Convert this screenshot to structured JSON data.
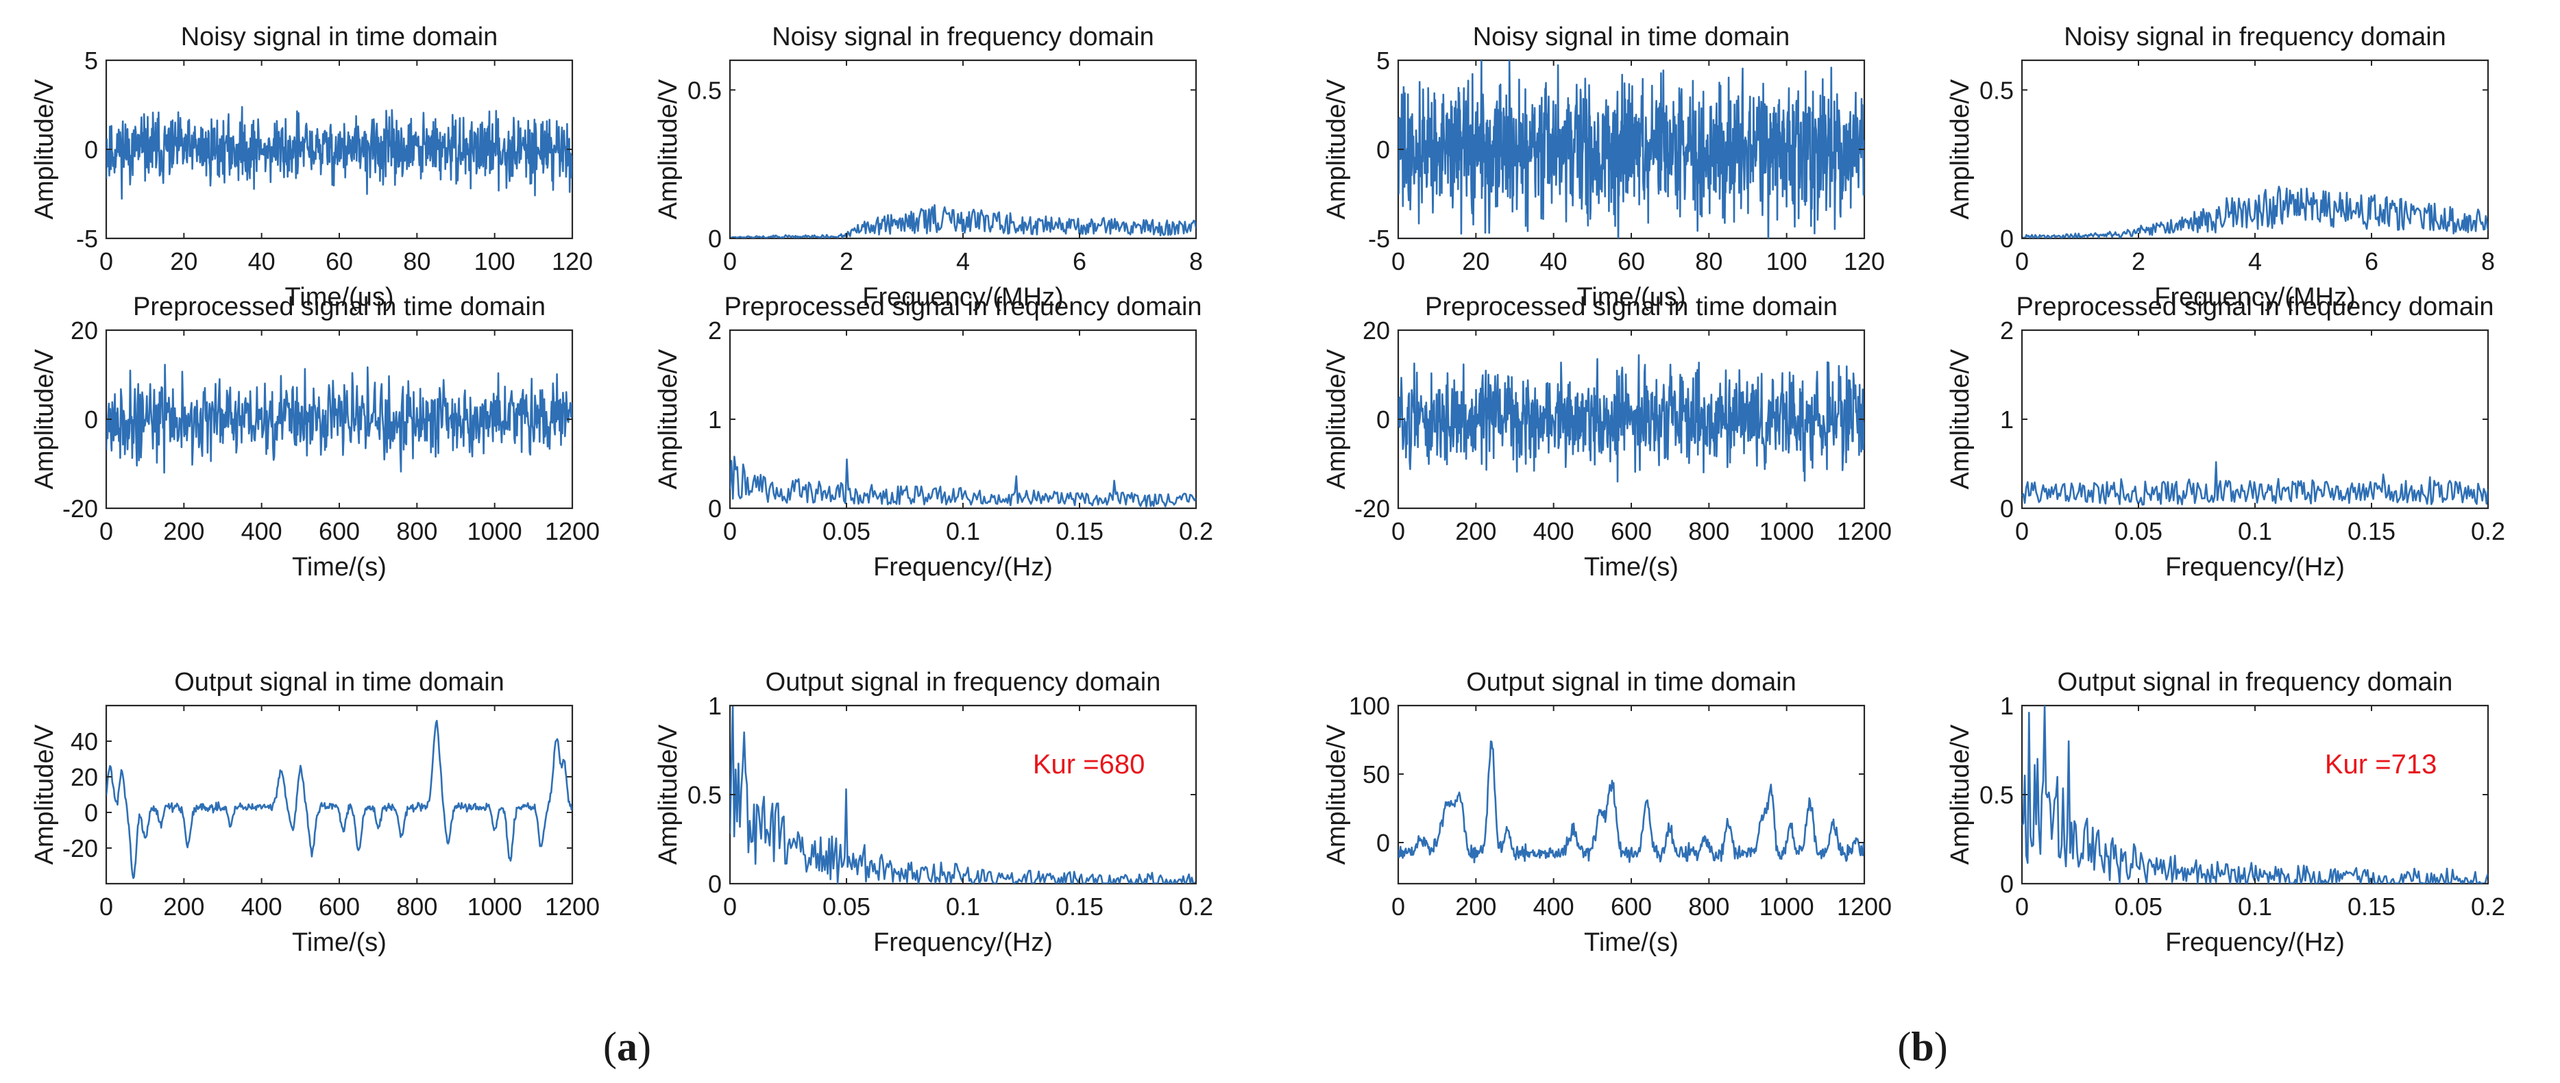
{
  "colors": {
    "signal": "#2e6fb5",
    "annotation": "#e8151b",
    "axes": "#262626"
  },
  "figure_labels": [
    {
      "open": "(",
      "letter": "a",
      "close": ")"
    },
    {
      "open": "(",
      "letter": "b",
      "close": ")"
    }
  ],
  "chart_data": [
    {
      "id": "a-noisy-time",
      "type": "line",
      "title": "Noisy signal in time domain",
      "xlabel": "Time/(us)",
      "ylabel": "Amplitude/V",
      "xlim": [
        0,
        120
      ],
      "ylim": [
        -5,
        5
      ],
      "xticks": [
        0,
        20,
        40,
        60,
        80,
        100,
        120
      ],
      "yticks": [
        -5,
        0,
        5
      ],
      "signal": {
        "kind": "noise",
        "n": 900,
        "amplitude": 1.3,
        "baseline": 0,
        "seed": 11,
        "x_start": 0,
        "x_end": 120
      }
    },
    {
      "id": "a-noisy-freq",
      "type": "line",
      "title": "Noisy signal in frequency domain",
      "xlabel": "Frequency/(MHz)",
      "ylabel": "Amplitude/V",
      "xlim": [
        0,
        8
      ],
      "ylim": [
        0,
        0.6
      ],
      "xticks": [
        0,
        2,
        4,
        6,
        8
      ],
      "yticks": [
        0,
        0.5
      ],
      "signal": {
        "kind": "spectrum",
        "n": 420,
        "seed": 12,
        "x_start": 0,
        "x_end": 8,
        "envelope": [
          [
            0,
            0.004
          ],
          [
            1.9,
            0.008
          ],
          [
            2.3,
            0.04
          ],
          [
            3.5,
            0.075
          ],
          [
            5,
            0.055
          ],
          [
            6.5,
            0.045
          ],
          [
            8,
            0.04
          ]
        ],
        "jitter": 0.022
      }
    },
    {
      "id": "a-pre-time",
      "type": "line",
      "title": "Preprocessed signal in time domain",
      "xlabel": "Time/(s)",
      "ylabel": "Amplitude/V",
      "xlim": [
        0,
        1200
      ],
      "ylim": [
        -20,
        20
      ],
      "xticks": [
        0,
        200,
        400,
        600,
        800,
        1000,
        1200
      ],
      "yticks": [
        -20,
        0,
        20
      ],
      "signal": {
        "kind": "noise",
        "n": 700,
        "amplitude": 6.2,
        "baseline": 0,
        "seed": 21,
        "x_start": 0,
        "x_end": 1200
      }
    },
    {
      "id": "a-pre-freq",
      "type": "line",
      "title": "Preprocessed signal in frequency domain",
      "xlabel": "Frequency/(Hz)",
      "ylabel": "Amplitude/V",
      "xlim": [
        0,
        0.2
      ],
      "ylim": [
        0,
        2
      ],
      "xticks": [
        0,
        0.05,
        0.1,
        0.15,
        0.2
      ],
      "yticks": [
        0,
        1,
        2
      ],
      "signal": {
        "kind": "spectrum",
        "n": 320,
        "seed": 22,
        "x_start": 0,
        "x_end": 0.2,
        "envelope": [
          [
            0,
            0.4
          ],
          [
            0.02,
            0.22
          ],
          [
            0.1,
            0.15
          ],
          [
            0.2,
            0.1
          ]
        ],
        "jitter": 0.15
      },
      "peaks": [
        [
          0.002,
          0.58
        ],
        [
          0.05,
          0.55
        ],
        [
          0.123,
          0.36
        ],
        [
          0.165,
          0.31
        ]
      ]
    },
    {
      "id": "a-out-time",
      "type": "line",
      "title": "Output signal in time domain",
      "xlabel": "Time/(s)",
      "ylabel": "Amplitude/V",
      "xlim": [
        0,
        1200
      ],
      "ylim": [
        -40,
        60
      ],
      "xticks": [
        0,
        200,
        400,
        600,
        800,
        1000,
        1200
      ],
      "yticks": [
        -20,
        0,
        20,
        40
      ],
      "signal": {
        "kind": "pulses",
        "n": 620,
        "seed": 31,
        "x_start": 0,
        "x_end": 1200,
        "baseline": 3,
        "noise": 1.6,
        "pulses": [
          [
            10,
            22,
            10
          ],
          [
            40,
            20,
            8
          ],
          [
            70,
            -40,
            10
          ],
          [
            100,
            -18,
            10
          ],
          [
            140,
            -10,
            8
          ],
          [
            210,
            -22,
            10
          ],
          [
            320,
            -10,
            8
          ],
          [
            450,
            20,
            12
          ],
          [
            480,
            -12,
            10
          ],
          [
            500,
            22,
            10
          ],
          [
            530,
            -25,
            10
          ],
          [
            610,
            -14,
            8
          ],
          [
            650,
            -25,
            10
          ],
          [
            700,
            -12,
            8
          ],
          [
            760,
            -16,
            10
          ],
          [
            850,
            48,
            12
          ],
          [
            880,
            -20,
            10
          ],
          [
            1000,
            -14,
            8
          ],
          [
            1040,
            -30,
            10
          ],
          [
            1120,
            -22,
            10
          ],
          [
            1160,
            38,
            12
          ],
          [
            1180,
            24,
            8
          ]
        ]
      }
    },
    {
      "id": "a-out-freq",
      "type": "line",
      "title": "Output signal in frequency domain",
      "xlabel": "Frequency/(Hz)",
      "ylabel": "Amplitude/V",
      "xlim": [
        0,
        0.2
      ],
      "ylim": [
        0,
        1
      ],
      "xticks": [
        0,
        0.05,
        0.1,
        0.15,
        0.2
      ],
      "yticks": [
        0,
        0.5,
        1
      ],
      "annotation": "Kur =680",
      "signal": {
        "kind": "spectrum",
        "n": 330,
        "seed": 32,
        "x_start": 0,
        "x_end": 0.2,
        "envelope": [
          [
            0,
            0.55
          ],
          [
            0.005,
            0.5
          ],
          [
            0.015,
            0.35
          ],
          [
            0.03,
            0.22
          ],
          [
            0.05,
            0.14
          ],
          [
            0.08,
            0.06
          ],
          [
            0.12,
            0.03
          ],
          [
            0.2,
            0.01
          ]
        ],
        "jitter": 0.45
      },
      "peaks": [
        [
          0.001,
          1.0
        ],
        [
          0.006,
          0.85
        ],
        [
          0.05,
          0.53
        ],
        [
          0.02,
          0.45
        ]
      ]
    },
    {
      "id": "b-noisy-time",
      "type": "line",
      "title": "Noisy signal in time domain",
      "xlabel": "Time/(us)",
      "ylabel": "Amplitude/V",
      "xlim": [
        0,
        120
      ],
      "ylim": [
        -5,
        5
      ],
      "xticks": [
        0,
        20,
        40,
        60,
        80,
        100,
        120
      ],
      "yticks": [
        -5,
        0,
        5
      ],
      "signal": {
        "kind": "noise",
        "n": 1200,
        "amplitude": 2.6,
        "baseline": 0,
        "seed": 41,
        "x_start": 0,
        "x_end": 120
      }
    },
    {
      "id": "b-noisy-freq",
      "type": "line",
      "title": "Noisy signal in frequency domain",
      "xlabel": "Frequency/(MHz)",
      "ylabel": "Amplitude/V",
      "xlim": [
        0,
        8
      ],
      "ylim": [
        0,
        0.6
      ],
      "xticks": [
        0,
        2,
        4,
        6,
        8
      ],
      "yticks": [
        0,
        0.5
      ],
      "signal": {
        "kind": "spectrum",
        "n": 420,
        "seed": 42,
        "x_start": 0,
        "x_end": 8,
        "envelope": [
          [
            0,
            0.005
          ],
          [
            1.5,
            0.012
          ],
          [
            2.8,
            0.05
          ],
          [
            3.5,
            0.09
          ],
          [
            4.5,
            0.12
          ],
          [
            6,
            0.1
          ],
          [
            8,
            0.06
          ]
        ],
        "jitter": 0.045
      }
    },
    {
      "id": "b-pre-time",
      "type": "line",
      "title": "Preprocessed signal in time domain",
      "xlabel": "Time/(s)",
      "ylabel": "Amplitude/V",
      "xlim": [
        0,
        1200
      ],
      "ylim": [
        -20,
        20
      ],
      "xticks": [
        0,
        200,
        400,
        600,
        800,
        1000,
        1200
      ],
      "yticks": [
        -20,
        0,
        20
      ],
      "signal": {
        "kind": "noise",
        "n": 900,
        "amplitude": 7.2,
        "baseline": 0,
        "seed": 51,
        "x_start": 0,
        "x_end": 1200
      }
    },
    {
      "id": "b-pre-freq",
      "type": "line",
      "title": "Preprocessed signal in frequency domain",
      "xlabel": "Frequency/(Hz)",
      "ylabel": "Amplitude/V",
      "xlim": [
        0,
        0.2
      ],
      "ylim": [
        0,
        2
      ],
      "xticks": [
        0,
        0.05,
        0.1,
        0.15,
        0.2
      ],
      "yticks": [
        0,
        1,
        2
      ],
      "signal": {
        "kind": "spectrum",
        "n": 330,
        "seed": 52,
        "x_start": 0,
        "x_end": 0.2,
        "envelope": [
          [
            0,
            0.2
          ],
          [
            0.1,
            0.22
          ],
          [
            0.2,
            0.2
          ]
        ],
        "jitter": 0.22
      },
      "peaks": [
        [
          0.083,
          0.52
        ],
        [
          0.155,
          0.38
        ],
        [
          0.175,
          0.35
        ]
      ]
    },
    {
      "id": "b-out-time",
      "type": "line",
      "title": "Output signal in time domain",
      "xlabel": "Time/(s)",
      "ylabel": "Amplitude/V",
      "xlim": [
        0,
        1200
      ],
      "ylim": [
        -30,
        100
      ],
      "xticks": [
        0,
        200,
        400,
        600,
        800,
        1000,
        1200
      ],
      "yticks": [
        0,
        50,
        100
      ],
      "signal": {
        "kind": "pulses",
        "n": 620,
        "seed": 61,
        "x_start": 0,
        "x_end": 1200,
        "baseline": -8,
        "noise": 4,
        "pulses": [
          [
            60,
            10,
            15
          ],
          [
            130,
            38,
            25
          ],
          [
            160,
            30,
            14
          ],
          [
            240,
            80,
            12
          ],
          [
            280,
            20,
            10
          ],
          [
            450,
            18,
            15
          ],
          [
            520,
            30,
            16
          ],
          [
            550,
            50,
            14
          ],
          [
            640,
            38,
            12
          ],
          [
            700,
            18,
            10
          ],
          [
            790,
            10,
            12
          ],
          [
            850,
            22,
            12
          ],
          [
            940,
            30,
            14
          ],
          [
            960,
            45,
            10
          ],
          [
            1010,
            20,
            10
          ],
          [
            1060,
            38,
            12
          ],
          [
            1120,
            22,
            12
          ],
          [
            1180,
            10,
            10
          ]
        ]
      }
    },
    {
      "id": "b-out-freq",
      "type": "line",
      "title": "Output signal in frequency domain",
      "xlabel": "Frequency/(Hz)",
      "ylabel": "Amplitude/V",
      "xlim": [
        0,
        0.2
      ],
      "ylim": [
        0,
        1
      ],
      "xticks": [
        0,
        0.05,
        0.1,
        0.15,
        0.2
      ],
      "yticks": [
        0,
        0.5,
        1
      ],
      "annotation": "Kur =713",
      "signal": {
        "kind": "spectrum",
        "n": 330,
        "seed": 62,
        "x_start": 0,
        "x_end": 0.2,
        "envelope": [
          [
            0,
            0.5
          ],
          [
            0.012,
            0.45
          ],
          [
            0.025,
            0.25
          ],
          [
            0.05,
            0.12
          ],
          [
            0.08,
            0.07
          ],
          [
            0.12,
            0.04
          ],
          [
            0.2,
            0.02
          ]
        ],
        "jitter": 0.5
      },
      "peaks": [
        [
          0.003,
          0.96
        ],
        [
          0.01,
          1.0
        ],
        [
          0.02,
          0.8
        ],
        [
          0.015,
          0.6
        ]
      ]
    }
  ]
}
